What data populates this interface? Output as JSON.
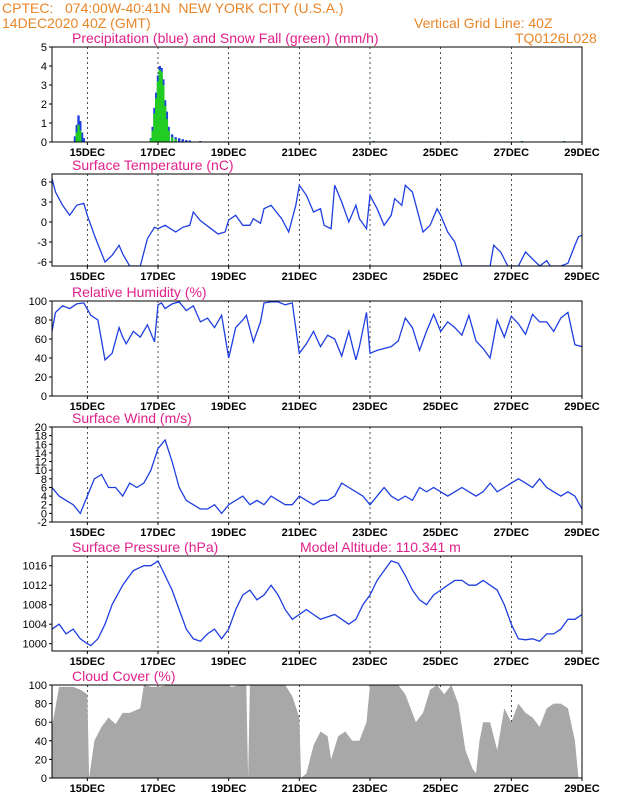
{
  "header": {
    "source": "CPTEC:",
    "coords": "074:00W-40:41N",
    "location": "NEW YORK CITY (U.S.A.)",
    "run": "14DEC2020 40Z (GMT)",
    "grid_note": "Vertical Grid Line: 40Z",
    "model_code": "TQ0126L028"
  },
  "colors": {
    "header": "#e8862a",
    "title": "#e0208a",
    "line": "#1f3fe0",
    "snow": "#22cc22",
    "cloud": "#a8a8a8"
  },
  "chart_data": [
    {
      "id": "precip",
      "type": "bar",
      "title": "Precipitation (blue) and Snow Fall (green) (mm/h)",
      "ylim": [
        0,
        5
      ],
      "yticks": [
        0,
        1,
        2,
        3,
        4,
        5
      ],
      "x_dates": [
        "15DEC",
        "17DEC",
        "19DEC",
        "21DEC",
        "23DEC",
        "25DEC",
        "27DEC",
        "29DEC"
      ],
      "grid": "vertical dashed",
      "series": [
        {
          "name": "Precipitation",
          "color": "blue",
          "points": [
            [
              14.65,
              0.3
            ],
            [
              14.7,
              0.9
            ],
            [
              14.75,
              1.4
            ],
            [
              14.8,
              1.1
            ],
            [
              14.85,
              0.5
            ],
            [
              14.9,
              0.2
            ],
            [
              16.8,
              0.2
            ],
            [
              16.85,
              0.8
            ],
            [
              16.9,
              1.8
            ],
            [
              16.95,
              2.6
            ],
            [
              17.0,
              3.5
            ],
            [
              17.05,
              4.0
            ],
            [
              17.1,
              3.9
            ],
            [
              17.15,
              3.3
            ],
            [
              17.2,
              2.2
            ],
            [
              17.25,
              1.6
            ],
            [
              17.3,
              0.8
            ],
            [
              17.4,
              0.4
            ],
            [
              17.5,
              0.25
            ],
            [
              17.6,
              0.2
            ],
            [
              17.7,
              0.15
            ],
            [
              17.8,
              0.1
            ],
            [
              17.9,
              0.08
            ],
            [
              18.2,
              0.05
            ],
            [
              21.3,
              0.03
            ],
            [
              23.1,
              0.05
            ],
            [
              25.2,
              0.04
            ],
            [
              26.2,
              0.03
            ],
            [
              27.3,
              0.05
            ],
            [
              28.5,
              0.05
            ]
          ]
        },
        {
          "name": "Snow Fall",
          "color": "green",
          "points": [
            [
              14.7,
              0.5
            ],
            [
              14.75,
              0.9
            ],
            [
              14.8,
              0.6
            ],
            [
              16.8,
              0.15
            ],
            [
              16.85,
              0.6
            ],
            [
              16.9,
              1.5
            ],
            [
              16.95,
              2.3
            ],
            [
              17.0,
              3.2
            ],
            [
              17.05,
              3.8
            ],
            [
              17.1,
              3.7
            ],
            [
              17.15,
              3.0
            ],
            [
              17.2,
              1.9
            ],
            [
              17.25,
              1.2
            ],
            [
              17.3,
              0.6
            ],
            [
              17.4,
              0.25
            ],
            [
              17.5,
              0.15
            ],
            [
              21.3,
              0.02
            ],
            [
              23.1,
              0.04
            ],
            [
              25.2,
              0.03
            ],
            [
              26.2,
              0.02
            ],
            [
              27.3,
              0.04
            ],
            [
              28.5,
              0.04
            ]
          ]
        }
      ]
    },
    {
      "id": "temp",
      "type": "line",
      "title": "Surface Temperature (nC)",
      "ylim": [
        -6.6,
        7.2
      ],
      "yticks": [
        -6,
        -3,
        0,
        3,
        6
      ],
      "x_dates": [
        "15DEC",
        "17DEC",
        "19DEC",
        "21DEC",
        "23DEC",
        "25DEC",
        "27DEC",
        "29DEC"
      ],
      "x": [
        14.0,
        14.1,
        14.3,
        14.5,
        14.7,
        14.9,
        15.0,
        15.2,
        15.5,
        15.7,
        15.9,
        16.0,
        16.2,
        16.5,
        16.7,
        16.9,
        17.0,
        17.2,
        17.5,
        17.7,
        17.9,
        18.0,
        18.2,
        18.5,
        18.7,
        18.9,
        19.0,
        19.2,
        19.4,
        19.6,
        19.7,
        19.9,
        20.0,
        20.2,
        20.5,
        20.7,
        20.9,
        21.0,
        21.2,
        21.4,
        21.6,
        21.7,
        21.9,
        22.0,
        22.2,
        22.4,
        22.6,
        22.7,
        22.9,
        23.0,
        23.2,
        23.4,
        23.6,
        23.7,
        23.9,
        24.0,
        24.2,
        24.4,
        24.5,
        24.7,
        24.9,
        25.0,
        25.2,
        25.4,
        25.6,
        25.9,
        26.4,
        26.5,
        26.7,
        26.9,
        27.0,
        27.2,
        27.4,
        27.8,
        28.0,
        28.1,
        28.2,
        28.4,
        28.6,
        28.8,
        28.9,
        29.0
      ],
      "y": [
        6.5,
        4.5,
        2.5,
        1.0,
        2.5,
        2.8,
        1.0,
        -2.0,
        -6.0,
        -5.0,
        -3.5,
        -4.8,
        -6.6,
        -6.6,
        -2.5,
        -0.8,
        -1.0,
        -0.5,
        -1.5,
        -0.8,
        -0.5,
        1.5,
        0.2,
        -1.0,
        -1.8,
        -1.5,
        0.3,
        1.0,
        -0.5,
        -0.5,
        0.5,
        -0.2,
        2.0,
        2.5,
        0.5,
        -1.5,
        2.5,
        5.5,
        4.0,
        1.5,
        2.0,
        -0.5,
        -1.0,
        5.5,
        3.0,
        0.0,
        2.5,
        0.5,
        -1.0,
        4.0,
        2.0,
        -0.5,
        1.0,
        3.5,
        2.5,
        5.5,
        4.5,
        0.5,
        -1.5,
        -0.5,
        2.0,
        1.0,
        -1.5,
        -3.0,
        -6.6,
        -6.6,
        -6.6,
        -3.5,
        -4.5,
        -6.6,
        -6.6,
        -6.6,
        -4.5,
        -6.6,
        -5.8,
        -6.6,
        -6.6,
        -6.6,
        -6.2,
        -3.5,
        -2.2,
        -2.0
      ]
    },
    {
      "id": "rh",
      "type": "line",
      "title": "Relative Humidity (%)",
      "ylim": [
        0,
        100
      ],
      "yticks": [
        0,
        20,
        40,
        60,
        80,
        100
      ],
      "x_dates": [
        "15DEC",
        "17DEC",
        "19DEC",
        "21DEC",
        "23DEC",
        "25DEC",
        "27DEC",
        "29DEC"
      ],
      "x": [
        14.0,
        14.1,
        14.3,
        14.5,
        14.7,
        14.9,
        15.1,
        15.3,
        15.5,
        15.7,
        15.9,
        16.0,
        16.1,
        16.3,
        16.5,
        16.7,
        16.9,
        17.0,
        17.1,
        17.2,
        17.4,
        17.6,
        17.8,
        18.0,
        18.2,
        18.4,
        18.6,
        18.8,
        19.0,
        19.2,
        19.4,
        19.5,
        19.7,
        19.9,
        20.0,
        20.2,
        20.4,
        20.6,
        20.8,
        21.0,
        21.2,
        21.4,
        21.6,
        21.8,
        22.0,
        22.2,
        22.4,
        22.6,
        22.7,
        22.9,
        23.0,
        23.2,
        23.4,
        23.6,
        23.8,
        24.0,
        24.2,
        24.4,
        24.6,
        24.8,
        25.0,
        25.2,
        25.4,
        25.6,
        25.8,
        26.0,
        26.2,
        26.4,
        26.6,
        26.8,
        27.0,
        27.2,
        27.4,
        27.6,
        27.8,
        28.0,
        28.2,
        28.4,
        28.6,
        28.8,
        29.0
      ],
      "y": [
        68,
        88,
        95,
        92,
        97,
        98,
        85,
        80,
        38,
        45,
        72,
        62,
        55,
        68,
        62,
        75,
        57,
        96,
        98,
        92,
        97,
        99,
        90,
        95,
        78,
        82,
        72,
        85,
        40,
        72,
        80,
        85,
        57,
        78,
        98,
        99,
        99,
        96,
        98,
        45,
        55,
        68,
        52,
        64,
        60,
        42,
        68,
        38,
        52,
        88,
        45,
        48,
        50,
        52,
        58,
        82,
        72,
        48,
        68,
        86,
        68,
        78,
        72,
        64,
        85,
        58,
        50,
        40,
        80,
        62,
        84,
        76,
        65,
        86,
        78,
        78,
        68,
        82,
        88,
        54,
        52
      ]
    },
    {
      "id": "wind",
      "type": "line",
      "title": "Surface Wind (m/s)",
      "ylim": [
        -2,
        20
      ],
      "yticks": [
        -2,
        0,
        2,
        4,
        6,
        8,
        10,
        12,
        14,
        16,
        18,
        20
      ],
      "x_dates": [
        "15DEC",
        "17DEC",
        "19DEC",
        "21DEC",
        "23DEC",
        "25DEC",
        "27DEC",
        "29DEC"
      ],
      "x": [
        14.0,
        14.2,
        14.4,
        14.6,
        14.8,
        15.0,
        15.2,
        15.4,
        15.6,
        15.8,
        16.0,
        16.2,
        16.4,
        16.6,
        16.8,
        17.0,
        17.2,
        17.4,
        17.6,
        17.8,
        18.0,
        18.2,
        18.4,
        18.6,
        18.8,
        19.0,
        19.2,
        19.4,
        19.6,
        19.8,
        20.0,
        20.2,
        20.4,
        20.6,
        20.8,
        21.0,
        21.2,
        21.4,
        21.6,
        21.8,
        22.0,
        22.2,
        22.4,
        22.6,
        22.8,
        23.0,
        23.2,
        23.4,
        23.6,
        23.8,
        24.0,
        24.2,
        24.4,
        24.6,
        24.8,
        25.0,
        25.2,
        25.4,
        25.6,
        25.8,
        26.0,
        26.2,
        26.4,
        26.6,
        26.8,
        27.0,
        27.2,
        27.4,
        27.6,
        27.8,
        28.0,
        28.2,
        28.4,
        28.6,
        28.8,
        29.0
      ],
      "y": [
        6,
        4,
        3,
        2,
        0,
        4,
        8,
        9,
        6,
        6,
        4,
        7,
        6,
        7,
        10,
        15,
        17,
        12,
        6,
        3,
        2,
        1,
        1,
        2,
        0,
        2,
        3,
        4,
        2,
        3,
        2,
        4,
        3,
        2,
        2,
        4,
        3,
        2,
        3,
        3,
        4,
        7,
        6,
        5,
        4,
        2,
        4,
        6,
        4,
        3,
        4,
        3,
        6,
        5,
        6,
        5,
        4,
        5,
        6,
        5,
        4,
        5,
        7,
        5,
        6,
        7,
        8,
        7,
        6,
        8,
        6,
        5,
        4,
        5,
        4,
        1
      ]
    },
    {
      "id": "pressure",
      "type": "line",
      "title": "Surface Pressure (hPa)",
      "annotation": "Model Altitude: 110.341 m",
      "ylim": [
        998.5,
        1018
      ],
      "yticks": [
        1000,
        1004,
        1008,
        1012,
        1016
      ],
      "x_dates": [
        "15DEC",
        "17DEC",
        "19DEC",
        "21DEC",
        "23DEC",
        "25DEC",
        "27DEC",
        "29DEC"
      ],
      "x": [
        14.0,
        14.2,
        14.4,
        14.6,
        14.8,
        15.0,
        15.1,
        15.3,
        15.5,
        15.7,
        16.0,
        16.3,
        16.6,
        16.8,
        17.0,
        17.2,
        17.4,
        17.6,
        17.8,
        18.0,
        18.2,
        18.4,
        18.6,
        18.8,
        19.0,
        19.2,
        19.4,
        19.6,
        19.8,
        20.0,
        20.2,
        20.4,
        20.6,
        20.8,
        21.0,
        21.2,
        21.4,
        21.6,
        21.8,
        22.0,
        22.2,
        22.4,
        22.6,
        22.8,
        23.0,
        23.2,
        23.4,
        23.6,
        23.8,
        24.0,
        24.2,
        24.4,
        24.6,
        24.8,
        25.0,
        25.2,
        25.4,
        25.6,
        25.8,
        26.0,
        26.2,
        26.4,
        26.6,
        26.8,
        27.0,
        27.2,
        27.4,
        27.6,
        27.8,
        28.0,
        28.2,
        28.4,
        28.6,
        28.8,
        29.0
      ],
      "y": [
        1003,
        1004,
        1002,
        1003,
        1001,
        1000,
        999.6,
        1001,
        1004,
        1008,
        1012,
        1015,
        1016,
        1016,
        1017,
        1014,
        1011,
        1007,
        1003,
        1001,
        1000.5,
        1002,
        1003,
        1001,
        1003,
        1007,
        1010,
        1011,
        1009,
        1010,
        1012,
        1010,
        1007,
        1005,
        1006,
        1007,
        1006,
        1005,
        1005.5,
        1006,
        1005,
        1004,
        1005,
        1008,
        1010,
        1013,
        1015,
        1017,
        1016.5,
        1014,
        1011,
        1009,
        1008,
        1010,
        1011,
        1012,
        1013,
        1013,
        1012,
        1012,
        1013,
        1012,
        1011,
        1008,
        1004,
        1001,
        1000.8,
        1001,
        1000.5,
        1002,
        1002,
        1003,
        1005,
        1005,
        1006
      ]
    },
    {
      "id": "cloud",
      "type": "area",
      "title": "Cloud Cover (%)",
      "ylim": [
        0,
        100
      ],
      "yticks": [
        0,
        20,
        40,
        60,
        80,
        100
      ],
      "x_dates": [
        "15DEC",
        "17DEC",
        "19DEC",
        "21DEC",
        "23DEC",
        "25DEC",
        "27DEC",
        "29DEC"
      ],
      "x": [
        14.0,
        14.2,
        14.3,
        14.6,
        14.8,
        15.0,
        15.05,
        15.2,
        15.4,
        15.6,
        15.8,
        16.0,
        16.2,
        16.5,
        16.6,
        16.8,
        17.0,
        17.3,
        17.6,
        17.8,
        17.9,
        18.1,
        18.3,
        18.5,
        18.7,
        18.9,
        19.1,
        19.3,
        19.5,
        19.55,
        19.6,
        19.7,
        19.9,
        20.1,
        20.3,
        20.6,
        20.8,
        21.0,
        21.05,
        21.2,
        21.4,
        21.6,
        21.8,
        21.9,
        22.1,
        22.3,
        22.5,
        22.7,
        22.9,
        23.0,
        23.3,
        23.6,
        23.8,
        24.0,
        24.3,
        24.5,
        24.7,
        24.9,
        25.1,
        25.3,
        25.5,
        25.7,
        25.9,
        26.0,
        26.1,
        26.2,
        26.4,
        26.6,
        26.8,
        27.0,
        27.2,
        27.4,
        27.6,
        27.8,
        28.0,
        28.2,
        28.4,
        28.6,
        28.8,
        28.9,
        29.0
      ],
      "y": [
        55,
        98,
        98,
        98,
        95,
        90,
        0,
        40,
        55,
        65,
        58,
        70,
        70,
        75,
        100,
        98,
        98,
        100,
        100,
        100,
        100,
        100,
        100,
        100,
        100,
        100,
        98,
        100,
        100,
        0,
        100,
        100,
        100,
        100,
        100,
        100,
        88,
        65,
        0,
        5,
        35,
        50,
        45,
        20,
        45,
        50,
        40,
        40,
        60,
        100,
        100,
        100,
        100,
        90,
        60,
        70,
        95,
        100,
        90,
        100,
        80,
        30,
        10,
        5,
        40,
        60,
        60,
        30,
        75,
        60,
        80,
        70,
        65,
        55,
        75,
        80,
        80,
        75,
        40,
        0,
        0
      ]
    }
  ]
}
